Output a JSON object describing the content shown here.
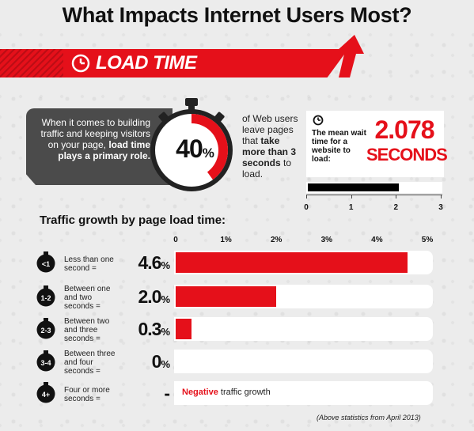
{
  "title": "What Impacts Internet Users Most?",
  "colors": {
    "accent_red": "#e5101a",
    "dark_box": "#4b4b4b",
    "background": "#ececec"
  },
  "banner": {
    "label": "LOAD TIME",
    "icon": "clock-icon"
  },
  "intro": {
    "text_plain": "When it comes to building traffic and keeping visitors on your page,",
    "text_bold": "load time plays a primary role."
  },
  "stat": {
    "percent_number": "40",
    "percent_sign": "%",
    "percent_value": 40,
    "text_before": "of Web users leave pages that",
    "text_bold": "take more than 3 seconds",
    "text_after": "to load."
  },
  "wait_time": {
    "label": "The mean wait time for a website to load:",
    "value": "2.078",
    "unit": "SECONDS",
    "bar_value": 2.078,
    "axis_max": 3,
    "ticks": [
      "0",
      "1",
      "2",
      "3"
    ]
  },
  "chart_data": {
    "type": "bar",
    "title": "Traffic growth by page load time:",
    "x_ticks": [
      "0",
      "1%",
      "2%",
      "3%",
      "4%",
      "5%"
    ],
    "xlim": [
      0,
      5
    ],
    "categories": [
      "Less than one second =",
      "Between one and two seconds =",
      "Between two and three seconds =",
      "Between three and four seconds =",
      "Four or more seconds ="
    ],
    "badges": [
      "<1",
      "1-2",
      "2-3",
      "3-4",
      "4+"
    ],
    "values": [
      4.6,
      2.0,
      0.3,
      0,
      null
    ],
    "value_labels": [
      {
        "num": "4.6",
        "unit": "%"
      },
      {
        "num": "2.0",
        "unit": "%"
      },
      {
        "num": "0.3",
        "unit": "%"
      },
      {
        "num": "0",
        "unit": "%"
      },
      {
        "num": "-",
        "unit": ""
      }
    ],
    "negative_note": {
      "bold": "Negative",
      "rest": "traffic growth"
    }
  },
  "footnote": "(Above statistics from April 2013)"
}
